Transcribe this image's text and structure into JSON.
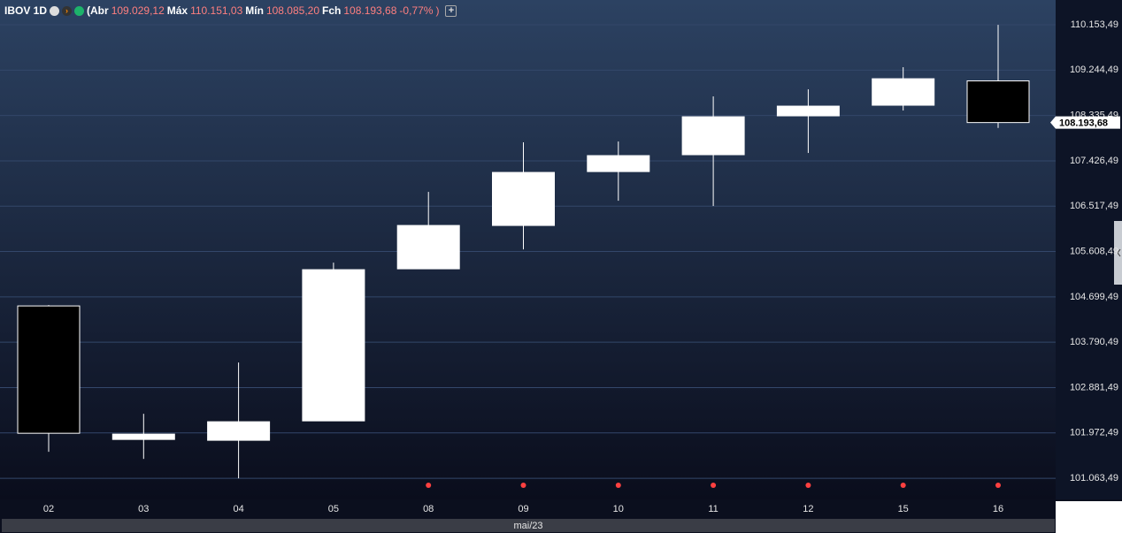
{
  "header": {
    "symbol": "IBOV 1D",
    "open_label": "(Abr",
    "open": "109.029,12",
    "high_label": "Máx",
    "high": "110.151,03",
    "low_label": "Mín",
    "low": "108.085,20",
    "close_label": "Fch",
    "close": "108.193,68",
    "change": "-0,77%",
    "paren": ")"
  },
  "chart_data": {
    "type": "candlestick",
    "categories": [
      "02",
      "03",
      "04",
      "05",
      "08",
      "09",
      "10",
      "11",
      "12",
      "15",
      "16"
    ],
    "open": [
      104518,
      101842,
      101825,
      102214,
      105262,
      106131,
      107211,
      107549,
      108328,
      108541,
      109029.12
    ],
    "high": [
      104536,
      102356,
      103384,
      105386,
      106804,
      107797,
      107814,
      108718,
      108860,
      109303,
      110151.03
    ],
    "low": [
      101594,
      101452,
      101063,
      102214,
      105262,
      105652,
      106627,
      106521,
      107584,
      108435,
      108085.2
    ],
    "close": [
      101966,
      101949,
      102197,
      105245,
      106131,
      107194,
      107531,
      108310,
      108523,
      109072,
      108193.68
    ],
    "up_color": "#ffffff",
    "down_color": "#000000",
    "ylim": [
      100640,
      110650
    ],
    "yticks": [
      {
        "value": 101063.49,
        "label": "101.063,49"
      },
      {
        "value": 101972.49,
        "label": "101.972,49"
      },
      {
        "value": 102881.49,
        "label": "102.881,49"
      },
      {
        "value": 103790.49,
        "label": "103.790,49"
      },
      {
        "value": 104699.49,
        "label": "104.699,49"
      },
      {
        "value": 105608.49,
        "label": "105.608,49"
      },
      {
        "value": 106517.49,
        "label": "106.517,49"
      },
      {
        "value": 107426.49,
        "label": "107.426,49"
      },
      {
        "value": 108335.49,
        "label": "108.335,49"
      },
      {
        "value": 109244.49,
        "label": "109.244,49"
      },
      {
        "value": 110153.49,
        "label": "110.153,49"
      }
    ],
    "x_period": "mai/23",
    "grid": true
  }
}
